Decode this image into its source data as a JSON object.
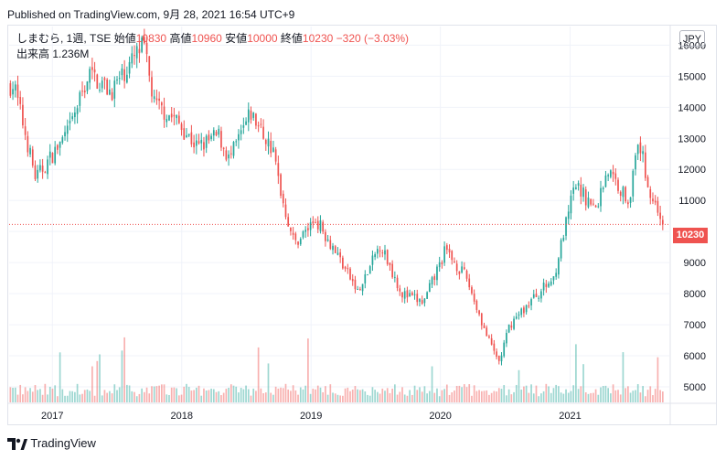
{
  "header": {
    "published": "Published on TradingView.com, 9月 28, 2021 16:54 UTC+9"
  },
  "legend": {
    "symbol": "しまむら, 1週, TSE",
    "open_label": "始値",
    "open_value": "10830",
    "high_label": "高値",
    "high_value": "10960",
    "low_label": "安値",
    "low_value": "10000",
    "close_label": "終値",
    "close_value": "10230",
    "change": "−320 (−3.03%)",
    "volume_label": "出来高",
    "volume_value": "1.236M"
  },
  "currency": "JPY",
  "last_price_tag": "10230",
  "footer": {
    "brand": "TradingView"
  },
  "colors": {
    "up": "#26a69a",
    "down": "#ef5350",
    "grid": "#f0f3fa",
    "price_line": "#ef5350"
  },
  "chart_data": {
    "type": "candlestick",
    "symbol": "しまむら",
    "interval": "1週",
    "exchange": "TSE",
    "currency": "JPY",
    "grid": true,
    "y_axis_position": "right",
    "ylim": [
      4500,
      16600
    ],
    "y_ticks": [
      5000,
      6000,
      7000,
      8000,
      9000,
      10000,
      11000,
      12000,
      13000,
      14000,
      15000,
      16000
    ],
    "y_tick_labels": [
      "5000",
      "6000",
      "7000",
      "8000",
      "9000",
      "10000",
      "11000",
      "12000",
      "13000",
      "14000",
      "15000",
      "16000"
    ],
    "x_ticks": [
      "2017",
      "2018",
      "2019",
      "2020",
      "2021"
    ],
    "last_close": 10230,
    "anchor_closes": [
      {
        "date": "2016-09",
        "close": 14700
      },
      {
        "date": "2016-11",
        "close": 11700
      },
      {
        "date": "2017-02",
        "close": 13200
      },
      {
        "date": "2017-04",
        "close": 15100
      },
      {
        "date": "2017-06",
        "close": 14500
      },
      {
        "date": "2017-08",
        "close": 15500
      },
      {
        "date": "2017-09",
        "close": 16000
      },
      {
        "date": "2017-10",
        "close": 14100
      },
      {
        "date": "2017-12",
        "close": 13600
      },
      {
        "date": "2018-02",
        "close": 12700
      },
      {
        "date": "2018-04",
        "close": 13100
      },
      {
        "date": "2018-05",
        "close": 12300
      },
      {
        "date": "2018-07",
        "close": 13800
      },
      {
        "date": "2018-09",
        "close": 12600
      },
      {
        "date": "2018-10",
        "close": 10900
      },
      {
        "date": "2018-11",
        "close": 9600
      },
      {
        "date": "2019-01",
        "close": 10400
      },
      {
        "date": "2019-03",
        "close": 9300
      },
      {
        "date": "2019-05",
        "close": 8000
      },
      {
        "date": "2019-07",
        "close": 9600
      },
      {
        "date": "2019-09",
        "close": 8000
      },
      {
        "date": "2019-11",
        "close": 7700
      },
      {
        "date": "2020-01",
        "close": 9400
      },
      {
        "date": "2020-03",
        "close": 8500
      },
      {
        "date": "2020-05",
        "close": 6500
      },
      {
        "date": "2020-06",
        "close": 5800
      },
      {
        "date": "2020-07",
        "close": 7000
      },
      {
        "date": "2020-09",
        "close": 7800
      },
      {
        "date": "2020-11",
        "close": 8500
      },
      {
        "date": "2021-01",
        "close": 11500
      },
      {
        "date": "2021-03",
        "close": 10700
      },
      {
        "date": "2021-04",
        "close": 12000
      },
      {
        "date": "2021-06",
        "close": 11000
      },
      {
        "date": "2021-07",
        "close": 12900
      },
      {
        "date": "2021-08",
        "close": 11200
      },
      {
        "date": "2021-09",
        "close": 10500
      },
      {
        "date": "2021-09-24",
        "close": 10230
      }
    ],
    "volume": {
      "label": "出来高",
      "last": "1.236M"
    }
  }
}
